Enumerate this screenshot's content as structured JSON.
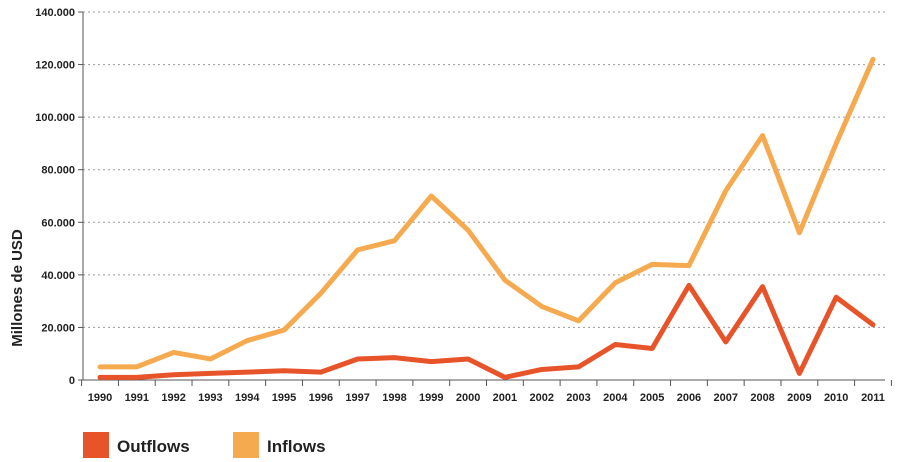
{
  "chart_data": {
    "type": "line",
    "title": "",
    "xlabel": "",
    "ylabel": "Millones de USD",
    "ylim": [
      0,
      140000
    ],
    "grid": true,
    "legend_position": "bottom-left",
    "yticks": [
      "0",
      "20.000",
      "40.000",
      "60.000",
      "80.000",
      "100.000",
      "120.000",
      "140.000"
    ],
    "categories": [
      "1990",
      "1991",
      "1992",
      "1993",
      "1994",
      "1995",
      "1996",
      "1997",
      "1998",
      "1999",
      "2000",
      "2001",
      "2002",
      "2003",
      "2004",
      "2005",
      "2006",
      "2007",
      "2008",
      "2009",
      "2010",
      "2011"
    ],
    "series": [
      {
        "name": "Outflows",
        "color": "#e8542a",
        "values": [
          1000,
          1000,
          2000,
          2500,
          3000,
          3500,
          3000,
          8000,
          8500,
          7000,
          8000,
          1000,
          4000,
          5000,
          13500,
          12000,
          36000,
          14500,
          35500,
          2500,
          31500,
          21000
        ]
      },
      {
        "name": "Inflows",
        "color": "#f6aa50",
        "values": [
          5000,
          5000,
          10500,
          8000,
          15000,
          19000,
          33000,
          49500,
          53000,
          70000,
          57000,
          38000,
          28000,
          22500,
          37000,
          44000,
          43500,
          72000,
          93000,
          56000,
          90000,
          122000
        ]
      }
    ]
  }
}
